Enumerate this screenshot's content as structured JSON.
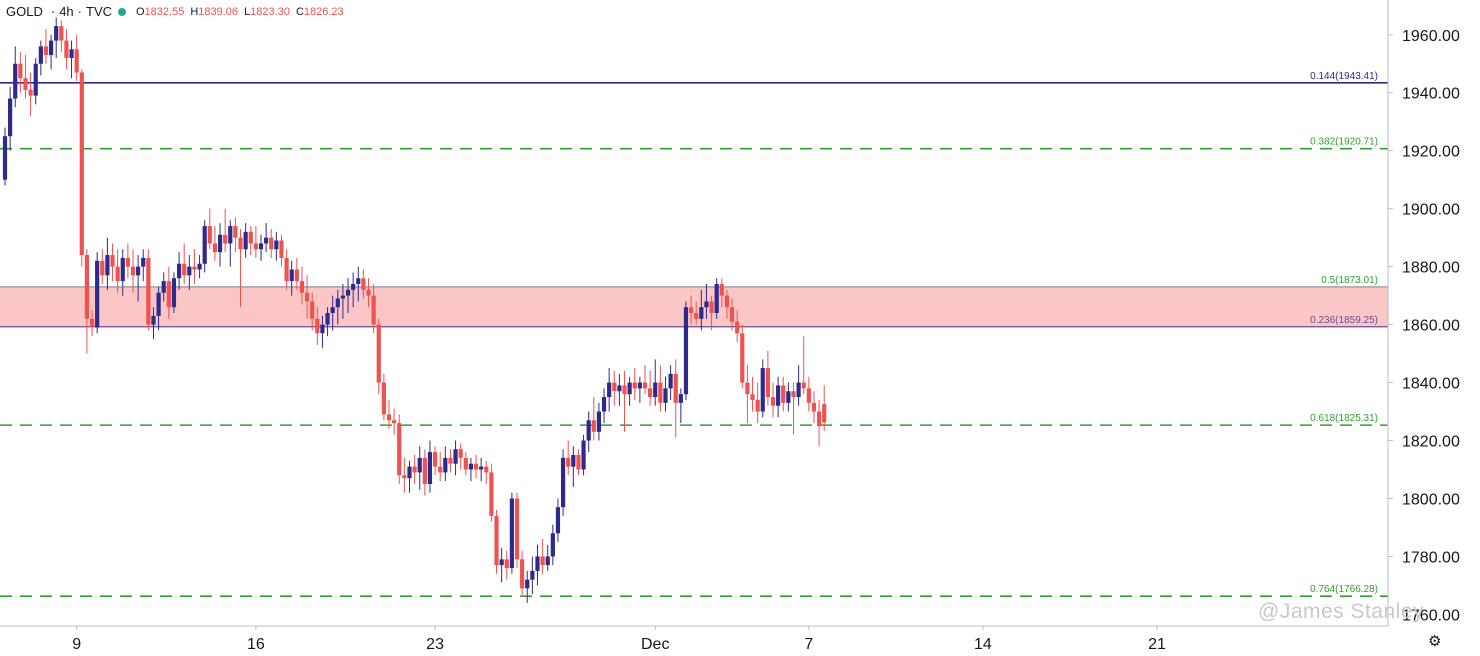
{
  "header": {
    "symbol": "GOLD",
    "interval": "4h",
    "source": "TVC",
    "status_color": "#26a69a",
    "ohlc": {
      "o_label": "O",
      "o": "1832.55",
      "h_label": "H",
      "h": "1839.06",
      "l_label": "L",
      "l": "1823.30",
      "c_label": "C",
      "c": "1826.23"
    }
  },
  "watermark": "@James Stanley",
  "settings_icon": "gear-icon",
  "colors": {
    "up": "#2e2a8c",
    "down": "#ef5350",
    "zone": "#fbc6c6",
    "fib_solid": "#2e2a8c",
    "fib_dashed": "#33a02c",
    "fib_zone_line": "#6a4c93"
  },
  "chart_data": {
    "type": "candlestick",
    "ylim": [
      1756,
      1972
    ],
    "y_ticks": [
      "1760.00",
      "1780.00",
      "1800.00",
      "1820.00",
      "1840.00",
      "1860.00",
      "1880.00",
      "1900.00",
      "1920.00",
      "1940.00",
      "1960.00"
    ],
    "y_tick_values": [
      1760,
      1780,
      1800,
      1820,
      1840,
      1860,
      1880,
      1900,
      1920,
      1940,
      1960
    ],
    "x_tick_labels": [
      "9",
      "16",
      "23",
      "Dec",
      "7",
      "14",
      "21"
    ],
    "x_tick_index": [
      14,
      49,
      84,
      127,
      157,
      191,
      225
    ],
    "horizontal_levels": [
      {
        "label": "0.144(1943.41)",
        "value": 1943.41,
        "style": "solid"
      },
      {
        "label": "0.382(1920.71)",
        "value": 1920.71,
        "style": "dashed"
      },
      {
        "label": "0.5(1873.01)",
        "value": 1873.01,
        "style": "zone-top"
      },
      {
        "label": "0.236(1859.25)",
        "value": 1859.25,
        "style": "zone-bottom"
      },
      {
        "label": "0.618(1825.31)",
        "value": 1825.31,
        "style": "dashed"
      },
      {
        "label": "0.764(1766.28)",
        "value": 1766.28,
        "style": "dashed"
      }
    ],
    "zone": [
      1859.25,
      1873.01
    ],
    "ohlc": [
      [
        1910,
        1928,
        1908,
        1925
      ],
      [
        1925,
        1942,
        1920,
        1938
      ],
      [
        1938,
        1956,
        1935,
        1950
      ],
      [
        1950,
        1954,
        1940,
        1945
      ],
      [
        1945,
        1953,
        1938,
        1941
      ],
      [
        1941,
        1947,
        1932,
        1939
      ],
      [
        1939,
        1952,
        1936,
        1950
      ],
      [
        1950,
        1958,
        1946,
        1956
      ],
      [
        1956,
        1962,
        1950,
        1953
      ],
      [
        1953,
        1960,
        1948,
        1958
      ],
      [
        1958,
        1966,
        1952,
        1963
      ],
      [
        1963,
        1965,
        1954,
        1958
      ],
      [
        1958,
        1962,
        1948,
        1952
      ],
      [
        1952,
        1958,
        1945,
        1955
      ],
      [
        1955,
        1960,
        1944,
        1947
      ],
      [
        1947,
        1948,
        1880,
        1884
      ],
      [
        1884,
        1886,
        1850,
        1862
      ],
      [
        1862,
        1865,
        1856,
        1859
      ],
      [
        1859,
        1885,
        1857,
        1882
      ],
      [
        1882,
        1886,
        1874,
        1877
      ],
      [
        1877,
        1890,
        1872,
        1884
      ],
      [
        1884,
        1888,
        1875,
        1880
      ],
      [
        1880,
        1886,
        1871,
        1875
      ],
      [
        1875,
        1886,
        1870,
        1883
      ],
      [
        1883,
        1888,
        1876,
        1880
      ],
      [
        1880,
        1886,
        1871,
        1877
      ],
      [
        1877,
        1884,
        1868,
        1880
      ],
      [
        1880,
        1886,
        1875,
        1883
      ],
      [
        1883,
        1886,
        1858,
        1860
      ],
      [
        1860,
        1866,
        1855,
        1863
      ],
      [
        1863,
        1873,
        1858,
        1871
      ],
      [
        1871,
        1878,
        1868,
        1875
      ],
      [
        1875,
        1880,
        1862,
        1866
      ],
      [
        1866,
        1878,
        1864,
        1876
      ],
      [
        1876,
        1885,
        1872,
        1881
      ],
      [
        1881,
        1888,
        1874,
        1877
      ],
      [
        1877,
        1884,
        1872,
        1880
      ],
      [
        1880,
        1886,
        1874,
        1879
      ],
      [
        1879,
        1884,
        1876,
        1881
      ],
      [
        1881,
        1896,
        1878,
        1894
      ],
      [
        1894,
        1900,
        1886,
        1888
      ],
      [
        1888,
        1894,
        1882,
        1885
      ],
      [
        1885,
        1895,
        1880,
        1891
      ],
      [
        1891,
        1900,
        1885,
        1888
      ],
      [
        1888,
        1896,
        1880,
        1894
      ],
      [
        1894,
        1897,
        1885,
        1890
      ],
      [
        1890,
        1893,
        1866,
        1886
      ],
      [
        1886,
        1895,
        1883,
        1892
      ],
      [
        1892,
        1894,
        1884,
        1888
      ],
      [
        1888,
        1894,
        1883,
        1886
      ],
      [
        1886,
        1891,
        1882,
        1888
      ],
      [
        1888,
        1895,
        1885,
        1890
      ],
      [
        1890,
        1893,
        1883,
        1886
      ],
      [
        1886,
        1892,
        1882,
        1889
      ],
      [
        1889,
        1891,
        1880,
        1883
      ],
      [
        1883,
        1886,
        1872,
        1875
      ],
      [
        1875,
        1882,
        1870,
        1879
      ],
      [
        1879,
        1883,
        1872,
        1875
      ],
      [
        1875,
        1880,
        1867,
        1871
      ],
      [
        1871,
        1877,
        1862,
        1868
      ],
      [
        1868,
        1871,
        1858,
        1862
      ],
      [
        1862,
        1866,
        1853,
        1857
      ],
      [
        1857,
        1863,
        1852,
        1860
      ],
      [
        1860,
        1866,
        1856,
        1864
      ],
      [
        1864,
        1870,
        1858,
        1866
      ],
      [
        1866,
        1872,
        1860,
        1869
      ],
      [
        1869,
        1874,
        1862,
        1870
      ],
      [
        1870,
        1876,
        1864,
        1872
      ],
      [
        1872,
        1878,
        1866,
        1874
      ],
      [
        1874,
        1880,
        1868,
        1876
      ],
      [
        1876,
        1879,
        1869,
        1872
      ],
      [
        1872,
        1876,
        1866,
        1870
      ],
      [
        1870,
        1874,
        1857,
        1860
      ],
      [
        1860,
        1862,
        1836,
        1840
      ],
      [
        1840,
        1843,
        1827,
        1829
      ],
      [
        1829,
        1834,
        1824,
        1827
      ],
      [
        1827,
        1831,
        1822,
        1826
      ],
      [
        1826,
        1829,
        1805,
        1808
      ],
      [
        1808,
        1814,
        1802,
        1807
      ],
      [
        1807,
        1813,
        1802,
        1811
      ],
      [
        1811,
        1815,
        1805,
        1809
      ],
      [
        1809,
        1818,
        1803,
        1814
      ],
      [
        1814,
        1817,
        1801,
        1805
      ],
      [
        1805,
        1820,
        1802,
        1816
      ],
      [
        1816,
        1818,
        1808,
        1811
      ],
      [
        1811,
        1816,
        1806,
        1809
      ],
      [
        1809,
        1818,
        1806,
        1814
      ],
      [
        1814,
        1817,
        1809,
        1812
      ],
      [
        1812,
        1820,
        1808,
        1817
      ],
      [
        1817,
        1819,
        1810,
        1814
      ],
      [
        1814,
        1816,
        1808,
        1810
      ],
      [
        1810,
        1814,
        1806,
        1812
      ],
      [
        1812,
        1815,
        1807,
        1810
      ],
      [
        1810,
        1814,
        1806,
        1811
      ],
      [
        1811,
        1813,
        1805,
        1809
      ],
      [
        1809,
        1812,
        1792,
        1794
      ],
      [
        1794,
        1796,
        1774,
        1777
      ],
      [
        1777,
        1783,
        1771,
        1779
      ],
      [
        1779,
        1782,
        1772,
        1776
      ],
      [
        1776,
        1802,
        1774,
        1800
      ],
      [
        1800,
        1802,
        1776,
        1779
      ],
      [
        1779,
        1782,
        1766,
        1769
      ],
      [
        1769,
        1775,
        1764,
        1772
      ],
      [
        1772,
        1780,
        1767,
        1775
      ],
      [
        1775,
        1784,
        1770,
        1780
      ],
      [
        1780,
        1786,
        1774,
        1777
      ],
      [
        1777,
        1784,
        1775,
        1780
      ],
      [
        1780,
        1791,
        1777,
        1788
      ],
      [
        1788,
        1800,
        1785,
        1797
      ],
      [
        1797,
        1817,
        1794,
        1814
      ],
      [
        1814,
        1820,
        1808,
        1811
      ],
      [
        1811,
        1818,
        1804,
        1815
      ],
      [
        1815,
        1817,
        1808,
        1810
      ],
      [
        1810,
        1822,
        1808,
        1820
      ],
      [
        1820,
        1830,
        1816,
        1827
      ],
      [
        1827,
        1835,
        1820,
        1823
      ],
      [
        1823,
        1833,
        1820,
        1830
      ],
      [
        1830,
        1838,
        1826,
        1835
      ],
      [
        1835,
        1845,
        1830,
        1840
      ],
      [
        1840,
        1844,
        1832,
        1837
      ],
      [
        1837,
        1843,
        1832,
        1839
      ],
      [
        1839,
        1844,
        1823,
        1836
      ],
      [
        1836,
        1842,
        1832,
        1840
      ],
      [
        1840,
        1845,
        1834,
        1838
      ],
      [
        1838,
        1842,
        1833,
        1840
      ],
      [
        1840,
        1846,
        1836,
        1838
      ],
      [
        1838,
        1844,
        1832,
        1835
      ],
      [
        1835,
        1848,
        1832,
        1840
      ],
      [
        1840,
        1846,
        1830,
        1833
      ],
      [
        1833,
        1842,
        1830,
        1838
      ],
      [
        1838,
        1846,
        1834,
        1843
      ],
      [
        1843,
        1848,
        1821,
        1833
      ],
      [
        1833,
        1838,
        1826,
        1836
      ],
      [
        1836,
        1868,
        1834,
        1866
      ],
      [
        1866,
        1870,
        1860,
        1864
      ],
      [
        1864,
        1868,
        1860,
        1862
      ],
      [
        1862,
        1872,
        1858,
        1866
      ],
      [
        1866,
        1874,
        1862,
        1868
      ],
      [
        1868,
        1870,
        1858,
        1864
      ],
      [
        1864,
        1876,
        1862,
        1874
      ],
      [
        1874,
        1876,
        1866,
        1870
      ],
      [
        1870,
        1872,
        1862,
        1866
      ],
      [
        1866,
        1869,
        1858,
        1861
      ],
      [
        1861,
        1865,
        1854,
        1857
      ],
      [
        1857,
        1860,
        1838,
        1840
      ],
      [
        1840,
        1846,
        1826,
        1836
      ],
      [
        1836,
        1842,
        1830,
        1834
      ],
      [
        1834,
        1840,
        1826,
        1830
      ],
      [
        1830,
        1848,
        1828,
        1845
      ],
      [
        1845,
        1851,
        1832,
        1835
      ],
      [
        1835,
        1840,
        1828,
        1832
      ],
      [
        1832,
        1842,
        1828,
        1839
      ],
      [
        1839,
        1842,
        1830,
        1833
      ],
      [
        1833,
        1840,
        1830,
        1837
      ],
      [
        1837,
        1840,
        1822,
        1835
      ],
      [
        1835,
        1846,
        1832,
        1840
      ],
      [
        1840,
        1856,
        1836,
        1838
      ],
      [
        1838,
        1842,
        1830,
        1833
      ],
      [
        1833,
        1837,
        1826,
        1830
      ],
      [
        1830,
        1834,
        1818,
        1825
      ],
      [
        1832.55,
        1839.06,
        1823.3,
        1826.23
      ]
    ]
  }
}
